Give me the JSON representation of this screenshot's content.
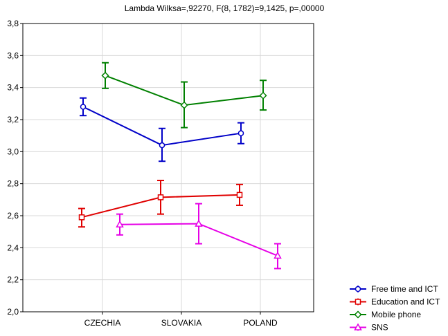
{
  "chart_data": {
    "type": "line",
    "title": "Lambda Wilksa=,92270, F(8, 1782)=9,1425, p=,00000",
    "xlabel": "",
    "ylabel": "",
    "categories": [
      "CZECHIA",
      "SLOVAKIA",
      "POLAND"
    ],
    "ylim": [
      2.0,
      3.8
    ],
    "yticks": [
      "2,0",
      "2,2",
      "2,4",
      "2,6",
      "2,8",
      "3,0",
      "3,2",
      "3,4",
      "3,6",
      "3,8"
    ],
    "grid": true,
    "legend_position": "bottom-right",
    "series": [
      {
        "name": "Free time and ICT",
        "color": "#0000c8",
        "marker": "circle",
        "values": [
          3.28,
          3.04,
          3.115
        ],
        "err_low": [
          3.225,
          2.94,
          3.05
        ],
        "err_high": [
          3.335,
          3.145,
          3.18
        ]
      },
      {
        "name": "Education and ICT",
        "color": "#e00000",
        "marker": "square",
        "values": [
          2.59,
          2.715,
          2.73
        ],
        "err_low": [
          2.53,
          2.61,
          2.665
        ],
        "err_high": [
          2.645,
          2.82,
          2.795
        ]
      },
      {
        "name": "Mobile phone",
        "color": "#008000",
        "marker": "diamond",
        "values": [
          3.475,
          3.29,
          3.35
        ],
        "err_low": [
          3.395,
          3.15,
          3.26
        ],
        "err_high": [
          3.555,
          3.435,
          3.445
        ]
      },
      {
        "name": "SNS",
        "color": "#e600e6",
        "marker": "triangle",
        "values": [
          2.545,
          2.55,
          2.35
        ],
        "err_low": [
          2.48,
          2.425,
          2.27
        ],
        "err_high": [
          2.61,
          2.675,
          2.425
        ]
      }
    ]
  }
}
